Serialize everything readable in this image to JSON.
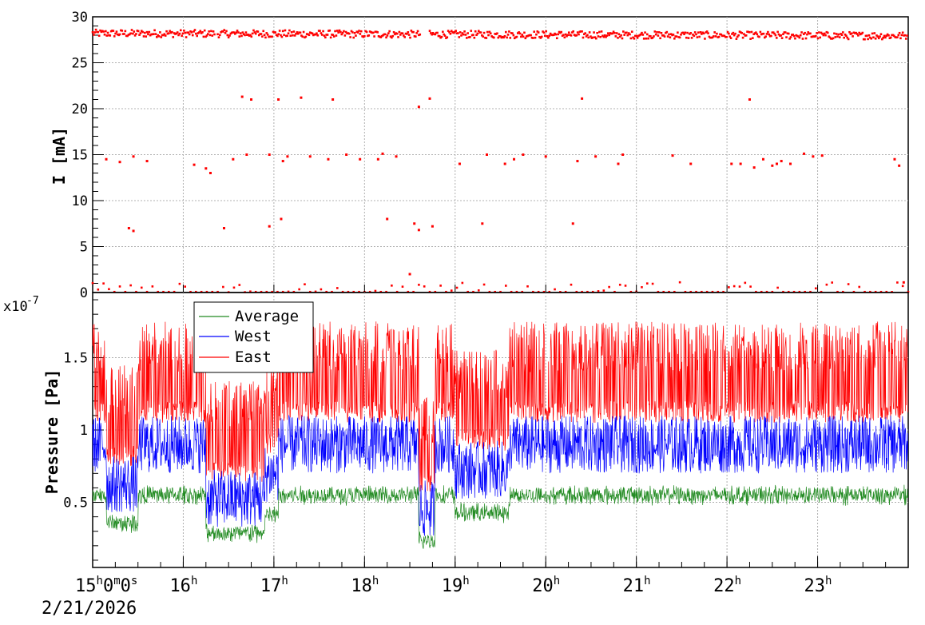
{
  "chart_data": [
    {
      "type": "scatter",
      "ylabel": "I [mA]",
      "ylim": [
        0,
        30
      ],
      "yticks": [
        0,
        5,
        10,
        15,
        20,
        25,
        30
      ],
      "grid": true,
      "series": [
        {
          "color": "#ff0000",
          "note_main": "dense band near 28 mA with gaps",
          "main_level": 28.2,
          "gaps_hours": [
            [
              16.35,
              16.38
            ],
            [
              18.62,
              18.72
            ]
          ],
          "outliers": [
            [
              15.15,
              14.5
            ],
            [
              15.3,
              14.2
            ],
            [
              15.45,
              14.8
            ],
            [
              15.6,
              14.3
            ],
            [
              15.4,
              7.0
            ],
            [
              15.45,
              6.7
            ],
            [
              16.25,
              13.5
            ],
            [
              16.3,
              13.0
            ],
            [
              16.45,
              7.0
            ],
            [
              16.55,
              14.5
            ],
            [
              16.65,
              21.3
            ],
            [
              16.7,
              15.0
            ],
            [
              16.75,
              21.0
            ],
            [
              16.95,
              15.0
            ],
            [
              17.05,
              21.0
            ],
            [
              17.1,
              14.3
            ],
            [
              17.15,
              14.8
            ],
            [
              17.08,
              8.0
            ],
            [
              16.95,
              7.2
            ],
            [
              17.3,
              21.2
            ],
            [
              17.4,
              14.8
            ],
            [
              17.6,
              14.5
            ],
            [
              17.65,
              21.0
            ],
            [
              17.8,
              15.0
            ],
            [
              17.95,
              14.5
            ],
            [
              18.15,
              14.5
            ],
            [
              18.2,
              15.1
            ],
            [
              18.25,
              8.0
            ],
            [
              18.35,
              14.8
            ],
            [
              18.55,
              7.5
            ],
            [
              18.6,
              6.8
            ],
            [
              18.6,
              20.2
            ],
            [
              18.72,
              21.1
            ],
            [
              18.75,
              7.2
            ],
            [
              19.05,
              14.0
            ],
            [
              19.3,
              7.5
            ],
            [
              19.35,
              15.0
            ],
            [
              19.55,
              14.0
            ],
            [
              19.65,
              14.5
            ],
            [
              19.75,
              15.0
            ],
            [
              20.0,
              14.8
            ],
            [
              20.3,
              7.5
            ],
            [
              20.35,
              14.3
            ],
            [
              20.4,
              21.1
            ],
            [
              20.55,
              14.8
            ],
            [
              20.8,
              14.0
            ],
            [
              20.85,
              15.0
            ],
            [
              21.4,
              14.9
            ],
            [
              21.6,
              14.0
            ],
            [
              22.05,
              14.0
            ],
            [
              22.15,
              14.0
            ],
            [
              22.25,
              21.0
            ],
            [
              22.3,
              13.6
            ],
            [
              22.4,
              14.5
            ],
            [
              22.5,
              13.8
            ],
            [
              22.55,
              14.0
            ],
            [
              22.6,
              14.3
            ],
            [
              22.7,
              14.0
            ],
            [
              22.85,
              15.1
            ],
            [
              22.95,
              14.8
            ],
            [
              23.05,
              14.9
            ],
            [
              23.85,
              14.5
            ],
            [
              23.9,
              13.8
            ],
            [
              18.5,
              2.0
            ],
            [
              16.12,
              13.9
            ],
            [
              23.95,
              1.1
            ]
          ],
          "low_points_note": "near-zero points scattered along bottom"
        }
      ]
    },
    {
      "type": "line",
      "ylabel": "Pressure [Pa]",
      "y_exponent_label": "x10",
      "y_exponent_value": "-7",
      "ylim": [
        0.05,
        1.95
      ],
      "yticks": [
        0.5,
        1,
        1.5
      ],
      "grid": true,
      "x_start_label": "15h0m0s",
      "x_date": "2/21/2026",
      "xticks": [
        "16h",
        "17h",
        "18h",
        "19h",
        "20h",
        "21h",
        "22h",
        "23h"
      ],
      "xlim_hours": [
        15.0,
        24.0
      ],
      "legend_position": "top-left",
      "series": [
        {
          "name": "Average",
          "color": "#228b22",
          "typical_low": 0.5,
          "typical_high": 0.6
        },
        {
          "name": "West",
          "color": "#0000ff",
          "typical_low": 0.7,
          "typical_high": 1.1
        },
        {
          "name": "East",
          "color": "#ff0000",
          "typical_low": 1.05,
          "typical_high": 1.75
        }
      ]
    }
  ],
  "labels": {
    "top_ylabel": "I [mA]",
    "bottom_ylabel": "Pressure [Pa]",
    "exp_base": "x10",
    "exp_power": "-7",
    "x_first_hour": "15",
    "x_first_h": "h",
    "x_first_min": "0",
    "x_first_m": "m",
    "x_first_sec": "0",
    "x_first_s": "s",
    "date": "2/21/2026",
    "legend_average": "Average",
    "legend_west": "West",
    "legend_east": "East"
  }
}
